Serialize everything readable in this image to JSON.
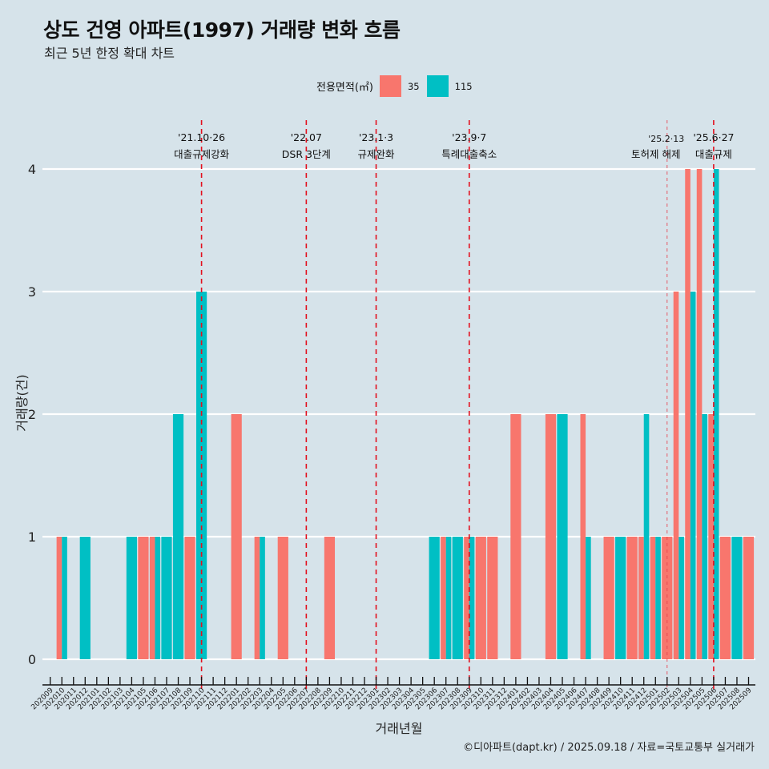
{
  "header": {
    "title": "상도 건영 아파트(1997) 거래량 변화 흐름",
    "subtitle": "최근 5년 한정 확대 차트"
  },
  "legend": {
    "title": "전용면적(㎡)",
    "items": [
      {
        "label": "35",
        "color": "#F8766D"
      },
      {
        "label": "115",
        "color": "#00BFC4"
      }
    ]
  },
  "caption": "©디아파트(dapt.kr) / 2025.09.18 / 자료=국토교통부 실거래가",
  "chart_data": {
    "type": "bar",
    "title": "상도 건영 아파트(1997) 거래량 변화 흐름",
    "subtitle": "최근 5년 한정 확대 차트",
    "xlabel": "거래년월",
    "ylabel": "거래량(건)",
    "ylim": [
      0,
      4
    ],
    "yticks": [
      0,
      1,
      2,
      3,
      4
    ],
    "grid": "horizontal",
    "legend_position": "top",
    "categories": [
      "202009",
      "202010",
      "202011",
      "202012",
      "202101",
      "202102",
      "202103",
      "202104",
      "202105",
      "202106",
      "202107",
      "202108",
      "202109",
      "202110",
      "202111",
      "202112",
      "202201",
      "202202",
      "202203",
      "202204",
      "202205",
      "202206",
      "202207",
      "202208",
      "202209",
      "202210",
      "202211",
      "202212",
      "202301",
      "202302",
      "202303",
      "202304",
      "202305",
      "202306",
      "202307",
      "202308",
      "202309",
      "202310",
      "202311",
      "202312",
      "202401",
      "202402",
      "202403",
      "202404",
      "202405",
      "202406",
      "202407",
      "202408",
      "202409",
      "202410",
      "202411",
      "202412",
      "202501",
      "202502",
      "202503",
      "202504",
      "202505",
      "202506",
      "202507",
      "202508",
      "202509"
    ],
    "series": [
      {
        "name": "35",
        "color": "#F8766D",
        "values": [
          0,
          1,
          0,
          0,
          0,
          0,
          0,
          0,
          1,
          1,
          0,
          0,
          1,
          0,
          0,
          0,
          2,
          0,
          1,
          0,
          1,
          0,
          0,
          0,
          1,
          0,
          0,
          0,
          0,
          0,
          0,
          0,
          0,
          0,
          1,
          0,
          1,
          1,
          1,
          0,
          2,
          0,
          0,
          2,
          0,
          0,
          2,
          0,
          1,
          0,
          1,
          1,
          1,
          1,
          3,
          4,
          4,
          2,
          1,
          0,
          1
        ]
      },
      {
        "name": "115",
        "color": "#00BFC4",
        "values": [
          0,
          1,
          0,
          1,
          0,
          0,
          0,
          1,
          0,
          1,
          1,
          2,
          0,
          3,
          0,
          0,
          0,
          0,
          1,
          0,
          0,
          0,
          0,
          0,
          0,
          0,
          0,
          0,
          0,
          0,
          0,
          0,
          0,
          1,
          1,
          1,
          1,
          0,
          0,
          0,
          0,
          0,
          0,
          0,
          2,
          0,
          1,
          0,
          0,
          1,
          0,
          2,
          1,
          0,
          1,
          3,
          2,
          4,
          0,
          1,
          0
        ]
      }
    ],
    "annotations": [
      {
        "x": "202110",
        "date": "'21.10·26",
        "label": "대출규제강화",
        "style": "dashed"
      },
      {
        "x": "202207",
        "date": "'22.07",
        "label": "DSR 3단계",
        "style": "dashed"
      },
      {
        "x": "202301",
        "date": "'23.1·3",
        "label": "규제완화",
        "style": "dashed"
      },
      {
        "x": "202309",
        "date": "'23.9·7",
        "label": "특례대출축소",
        "style": "dashed"
      },
      {
        "x": "202502",
        "date": "'25.2·13",
        "label": "토허제 해제",
        "style": "dotted-light"
      },
      {
        "x": "202506",
        "date": "'25.6·27",
        "label": "대출규제",
        "style": "dashed"
      }
    ]
  }
}
